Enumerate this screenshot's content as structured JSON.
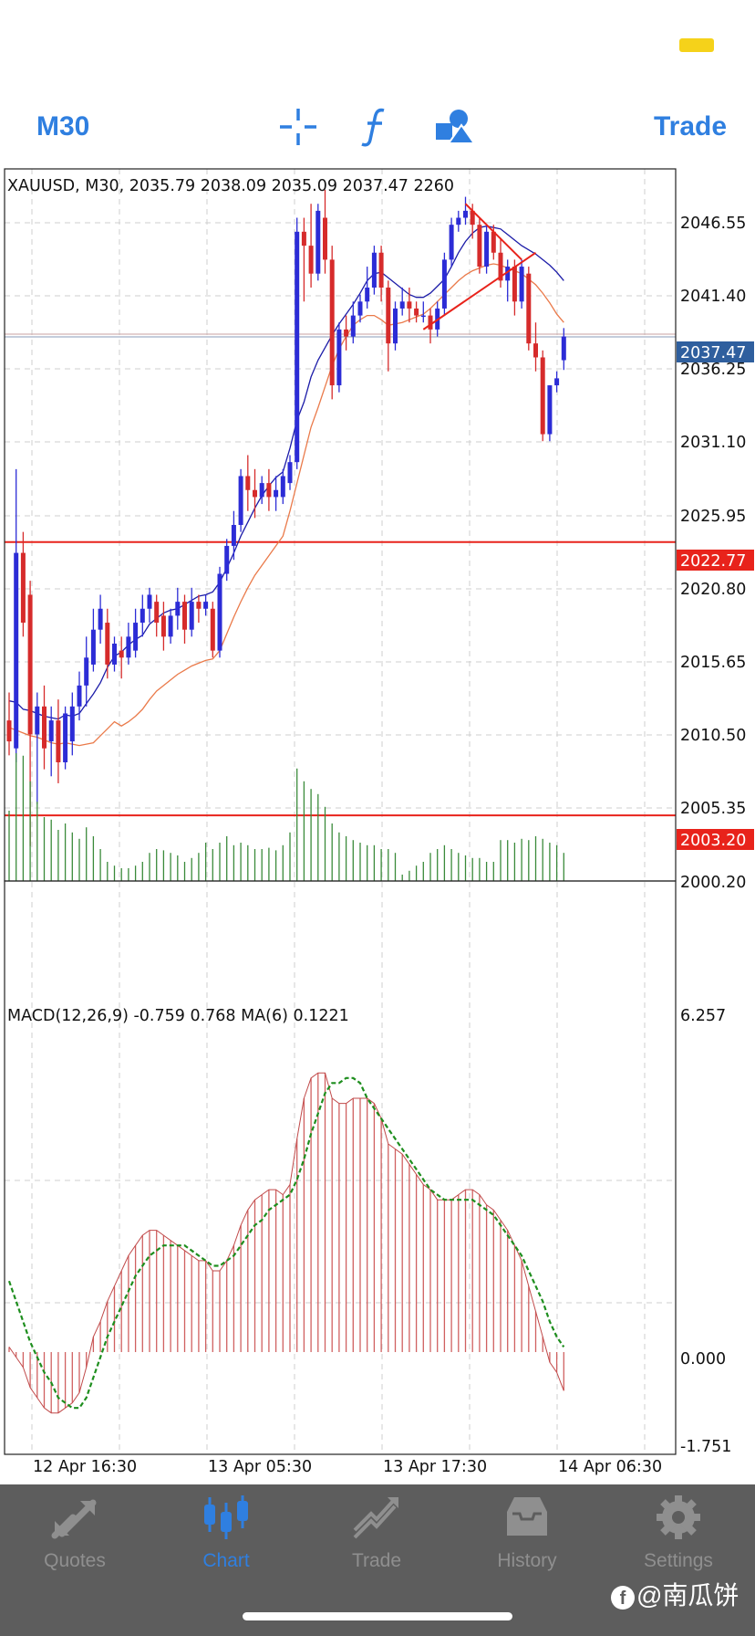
{
  "toolbar": {
    "timeframe": "M30",
    "trade_label": "Trade",
    "icons": [
      "crosshair-icon",
      "function-icon",
      "objects-icon"
    ]
  },
  "chart_header": {
    "symbol_line": "XAUUSD, M30, 2035.79 2038.09 2035.09 2037.47 2260",
    "macd_line": "MACD(12,26,9) -0.759 0.768 MA(6) 0.1221"
  },
  "price_axis": {
    "labels": [
      "2046.55",
      "2041.40",
      "2036.25",
      "2031.10",
      "2025.95",
      "2020.80",
      "2015.65",
      "2010.50",
      "2005.35",
      "2000.20"
    ],
    "current_price": "2037.47",
    "level_upper": "2022.77",
    "level_lower": "2003.20"
  },
  "macd_axis": {
    "labels": [
      "6.257",
      "0.000",
      "-1.751"
    ]
  },
  "time_axis": {
    "labels": [
      "12 Apr 16:30",
      "13 Apr 05:30",
      "13 Apr 17:30",
      "14 Apr 06:30"
    ]
  },
  "colors": {
    "bull": "#2c2cd6",
    "bear": "#d62b2b",
    "level": "#e8231b",
    "accent": "#2f7fe0",
    "price_tag": "#2f5f9e",
    "ma_fast": "#1c1ca8",
    "ma_slow": "#ea7a4a",
    "volume": "#3a8a3a",
    "macd_hist": "#d06060",
    "macd_signal": "#1e8e1e"
  },
  "chart_data": {
    "type": "candlestick",
    "symbol": "XAUUSD",
    "timeframe": "M30",
    "ylim": [
      1998.5,
      2049.5
    ],
    "candles": [
      {
        "o": 2010.0,
        "h": 2012.0,
        "c": 2008.5,
        "l": 2007.5
      },
      {
        "o": 2008.0,
        "h": 2028.0,
        "c": 2022.0,
        "l": 2007.0
      },
      {
        "o": 2022.0,
        "h": 2023.5,
        "c": 2017.0,
        "l": 2016.0
      },
      {
        "o": 2019.0,
        "h": 2020.0,
        "c": 2009.0,
        "l": 2001.0
      },
      {
        "o": 2009.0,
        "h": 2012.0,
        "c": 2011.0,
        "l": 2004.0
      },
      {
        "o": 2011.0,
        "h": 2012.5,
        "c": 2008.0,
        "l": 2006.5
      },
      {
        "o": 2008.5,
        "h": 2011.0,
        "c": 2010.0,
        "l": 2006.0
      },
      {
        "o": 2010.0,
        "h": 2011.5,
        "c": 2007.0,
        "l": 2005.5
      },
      {
        "o": 2007.0,
        "h": 2011.0,
        "c": 2010.5,
        "l": 2006.5
      },
      {
        "o": 2008.5,
        "h": 2012.0,
        "c": 2011.0,
        "l": 2007.5
      },
      {
        "o": 2011.0,
        "h": 2013.5,
        "c": 2012.5,
        "l": 2010.0
      },
      {
        "o": 2012.5,
        "h": 2016.0,
        "c": 2014.5,
        "l": 2011.0
      },
      {
        "o": 2014.0,
        "h": 2018.0,
        "c": 2016.5,
        "l": 2013.5
      },
      {
        "o": 2016.5,
        "h": 2019.0,
        "c": 2018.0,
        "l": 2015.5
      },
      {
        "o": 2017.0,
        "h": 2018.0,
        "c": 2014.0,
        "l": 2013.0
      },
      {
        "o": 2014.0,
        "h": 2016.0,
        "c": 2015.5,
        "l": 2013.5
      },
      {
        "o": 2015.0,
        "h": 2016.0,
        "c": 2014.5,
        "l": 2013.0
      },
      {
        "o": 2014.5,
        "h": 2017.0,
        "c": 2016.0,
        "l": 2014.0
      },
      {
        "o": 2015.0,
        "h": 2018.0,
        "c": 2017.0,
        "l": 2014.5
      },
      {
        "o": 2017.0,
        "h": 2019.0,
        "c": 2018.0,
        "l": 2016.0
      },
      {
        "o": 2018.0,
        "h": 2019.5,
        "c": 2019.0,
        "l": 2017.0
      },
      {
        "o": 2018.5,
        "h": 2019.0,
        "c": 2017.0,
        "l": 2016.0
      },
      {
        "o": 2017.5,
        "h": 2018.5,
        "c": 2016.0,
        "l": 2015.0
      },
      {
        "o": 2016.0,
        "h": 2018.0,
        "c": 2017.5,
        "l": 2015.5
      },
      {
        "o": 2017.5,
        "h": 2019.5,
        "c": 2018.5,
        "l": 2016.5
      },
      {
        "o": 2018.5,
        "h": 2019.0,
        "c": 2016.5,
        "l": 2015.5
      },
      {
        "o": 2016.5,
        "h": 2019.5,
        "c": 2018.5,
        "l": 2016.0
      },
      {
        "o": 2018.5,
        "h": 2019.0,
        "c": 2018.0,
        "l": 2017.0
      },
      {
        "o": 2018.0,
        "h": 2019.0,
        "c": 2018.5,
        "l": 2017.5
      },
      {
        "o": 2018.0,
        "h": 2018.5,
        "c": 2015.0,
        "l": 2014.5
      },
      {
        "o": 2015.0,
        "h": 2021.0,
        "c": 2020.5,
        "l": 2014.5
      },
      {
        "o": 2020.5,
        "h": 2023.0,
        "c": 2022.5,
        "l": 2020.0
      },
      {
        "o": 2022.5,
        "h": 2025.0,
        "c": 2024.0,
        "l": 2021.5
      },
      {
        "o": 2024.0,
        "h": 2028.0,
        "c": 2027.5,
        "l": 2023.5
      },
      {
        "o": 2027.5,
        "h": 2029.0,
        "c": 2026.5,
        "l": 2025.0
      },
      {
        "o": 2026.5,
        "h": 2028.0,
        "c": 2026.0,
        "l": 2024.5
      },
      {
        "o": 2026.0,
        "h": 2027.5,
        "c": 2027.0,
        "l": 2025.5
      },
      {
        "o": 2027.0,
        "h": 2028.0,
        "c": 2026.0,
        "l": 2025.0
      },
      {
        "o": 2026.0,
        "h": 2027.5,
        "c": 2026.5,
        "l": 2025.0
      },
      {
        "o": 2026.0,
        "h": 2028.0,
        "c": 2027.5,
        "l": 2025.5
      },
      {
        "o": 2027.0,
        "h": 2029.0,
        "c": 2028.5,
        "l": 2026.5
      },
      {
        "o": 2028.5,
        "h": 2046.0,
        "c": 2045.0,
        "l": 2028.0
      },
      {
        "o": 2045.0,
        "h": 2046.0,
        "c": 2044.0,
        "l": 2040.0
      },
      {
        "o": 2044.0,
        "h": 2047.0,
        "c": 2042.0,
        "l": 2041.0
      },
      {
        "o": 2042.0,
        "h": 2047.0,
        "c": 2046.5,
        "l": 2041.5
      },
      {
        "o": 2046.0,
        "h": 2048.0,
        "c": 2043.0,
        "l": 2042.0
      },
      {
        "o": 2043.0,
        "h": 2044.0,
        "c": 2034.0,
        "l": 2033.0
      },
      {
        "o": 2034.0,
        "h": 2038.5,
        "c": 2038.0,
        "l": 2033.5
      },
      {
        "o": 2038.0,
        "h": 2039.0,
        "c": 2037.5,
        "l": 2036.5
      },
      {
        "o": 2037.5,
        "h": 2040.0,
        "c": 2039.0,
        "l": 2037.0
      },
      {
        "o": 2039.0,
        "h": 2040.5,
        "c": 2040.0,
        "l": 2038.5
      },
      {
        "o": 2040.0,
        "h": 2042.5,
        "c": 2041.0,
        "l": 2039.5
      },
      {
        "o": 2041.0,
        "h": 2044.0,
        "c": 2043.5,
        "l": 2040.5
      },
      {
        "o": 2043.5,
        "h": 2044.0,
        "c": 2041.0,
        "l": 2040.0
      },
      {
        "o": 2041.0,
        "h": 2041.5,
        "c": 2037.0,
        "l": 2035.0
      },
      {
        "o": 2037.0,
        "h": 2040.0,
        "c": 2039.5,
        "l": 2036.5
      },
      {
        "o": 2039.5,
        "h": 2041.0,
        "c": 2040.0,
        "l": 2039.0
      },
      {
        "o": 2040.0,
        "h": 2041.0,
        "c": 2039.5,
        "l": 2038.5
      },
      {
        "o": 2039.5,
        "h": 2040.0,
        "c": 2039.0,
        "l": 2038.5
      },
      {
        "o": 2039.0,
        "h": 2040.0,
        "c": 2039.0,
        "l": 2038.5
      },
      {
        "o": 2039.0,
        "h": 2039.5,
        "c": 2038.0,
        "l": 2037.0
      },
      {
        "o": 2038.0,
        "h": 2040.0,
        "c": 2039.5,
        "l": 2037.5
      },
      {
        "o": 2039.5,
        "h": 2043.5,
        "c": 2043.0,
        "l": 2039.0
      },
      {
        "o": 2043.0,
        "h": 2046.0,
        "c": 2045.5,
        "l": 2042.5
      },
      {
        "o": 2045.5,
        "h": 2046.5,
        "c": 2046.0,
        "l": 2045.0
      },
      {
        "o": 2046.0,
        "h": 2047.5,
        "c": 2046.5,
        "l": 2045.5
      },
      {
        "o": 2046.5,
        "h": 2047.0,
        "c": 2045.5,
        "l": 2044.5
      },
      {
        "o": 2045.5,
        "h": 2046.0,
        "c": 2042.5,
        "l": 2042.0
      },
      {
        "o": 2042.5,
        "h": 2045.5,
        "c": 2045.0,
        "l": 2042.0
      },
      {
        "o": 2045.0,
        "h": 2045.5,
        "c": 2043.5,
        "l": 2043.0
      },
      {
        "o": 2043.5,
        "h": 2044.5,
        "c": 2041.5,
        "l": 2041.0
      },
      {
        "o": 2041.5,
        "h": 2043.0,
        "c": 2042.5,
        "l": 2040.0
      },
      {
        "o": 2042.5,
        "h": 2043.0,
        "c": 2040.0,
        "l": 2039.0
      },
      {
        "o": 2040.0,
        "h": 2043.0,
        "c": 2042.5,
        "l": 2039.5
      },
      {
        "o": 2042.0,
        "h": 2042.5,
        "c": 2037.0,
        "l": 2036.5
      },
      {
        "o": 2037.0,
        "h": 2038.5,
        "c": 2036.0,
        "l": 2035.0
      },
      {
        "o": 2036.0,
        "h": 2036.5,
        "c": 2030.5,
        "l": 2030.0
      },
      {
        "o": 2030.5,
        "h": 2034.0,
        "c": 2034.0,
        "l": 2030.0
      },
      {
        "o": 2034.0,
        "h": 2035.0,
        "c": 2034.5,
        "l": 2033.5
      },
      {
        "o": 2035.8,
        "h": 2038.1,
        "c": 2037.5,
        "l": 2035.1
      }
    ],
    "ma_fast": [
      2011.4,
      2011.3,
      2010.8,
      2010.7,
      2010.5,
      2010.3,
      2010.2,
      2010.1,
      2010.4,
      2010.3,
      2010.5,
      2011.2,
      2011.9,
      2012.7,
      2013.8,
      2014.6,
      2014.9,
      2015.4,
      2015.8,
      2016.1,
      2016.9,
      2017.3,
      2017.7,
      2017.9,
      2018.0,
      2018.3,
      2018.6,
      2018.9,
      2019.0,
      2019.2,
      2019.9,
      2020.9,
      2022.0,
      2023.2,
      2024.2,
      2025.2,
      2026.1,
      2026.8,
      2027.4,
      2027.8,
      2029.5,
      2031.5,
      2032.8,
      2034.6,
      2035.8,
      2036.7,
      2037.6,
      2038.4,
      2039.1,
      2039.8,
      2040.6,
      2041.5,
      2042.0,
      2042.1,
      2041.7,
      2041.3,
      2040.9,
      2040.5,
      2040.3,
      2040.3,
      2040.6,
      2041.1,
      2041.6,
      2042.5,
      2043.5,
      2044.3,
      2044.9,
      2045.3,
      2045.4,
      2045.3,
      2045.2,
      2044.8,
      2044.4,
      2044.0,
      2043.7,
      2043.4,
      2043.0,
      2042.6,
      2042.1,
      2041.5
    ],
    "ma_slow": [
      2009.5,
      2009.3,
      2009.1,
      2008.9,
      2008.8,
      2008.6,
      2008.4,
      2008.3,
      2008.4,
      2008.3,
      2008.2,
      2008.3,
      2008.4,
      2008.9,
      2009.4,
      2009.9,
      2009.6,
      2009.9,
      2010.3,
      2010.8,
      2011.5,
      2012.1,
      2012.5,
      2012.9,
      2013.3,
      2013.6,
      2013.9,
      2014.1,
      2014.3,
      2014.4,
      2015.0,
      2016.2,
      2017.4,
      2018.5,
      2019.5,
      2020.4,
      2021.1,
      2021.8,
      2022.5,
      2023.2,
      2025.0,
      2027.0,
      2029.0,
      2031.0,
      2032.4,
      2033.9,
      2035.4,
      2036.6,
      2037.5,
      2038.3,
      2038.7,
      2039.0,
      2039.0,
      2038.7,
      2038.3,
      2038.4,
      2038.5,
      2038.7,
      2038.9,
      2039.1,
      2039.5,
      2040.0,
      2040.5,
      2041.0,
      2041.5,
      2041.9,
      2042.2,
      2042.4,
      2042.6,
      2042.7,
      2042.6,
      2042.4,
      2042.2,
      2042.0,
      2041.6,
      2041.2,
      2040.6,
      2039.9,
      2039.1,
      2038.5
    ],
    "trendlines": [
      {
        "from": [
          65,
          2047.0
        ],
        "to": [
          73,
          2043.0
        ]
      },
      {
        "from": [
          59,
          2038.0
        ],
        "to": [
          75,
          2043.5
        ]
      }
    ],
    "levels": [
      2022.77,
      2003.2
    ],
    "current_price": 2037.47,
    "volume": [
      0.55,
      1.0,
      0.98,
      0.78,
      0.62,
      0.5,
      0.48,
      0.4,
      0.45,
      0.38,
      0.33,
      0.42,
      0.35,
      0.25,
      0.15,
      0.12,
      0.1,
      0.1,
      0.12,
      0.15,
      0.22,
      0.25,
      0.24,
      0.22,
      0.2,
      0.15,
      0.18,
      0.22,
      0.3,
      0.25,
      0.3,
      0.35,
      0.28,
      0.3,
      0.28,
      0.25,
      0.25,
      0.26,
      0.24,
      0.28,
      0.38,
      0.88,
      0.78,
      0.72,
      0.68,
      0.58,
      0.45,
      0.38,
      0.35,
      0.32,
      0.3,
      0.28,
      0.28,
      0.25,
      0.25,
      0.22,
      0.05,
      0.08,
      0.12,
      0.15,
      0.22,
      0.25,
      0.28,
      0.25,
      0.22,
      0.2,
      0.18,
      0.18,
      0.15,
      0.15,
      0.32,
      0.32,
      0.3,
      0.33,
      0.32,
      0.35,
      0.33,
      0.3,
      0.28,
      0.22
    ],
    "macd": {
      "ylim": [
        -1.751,
        6.257
      ],
      "histogram": [
        0.1,
        -0.1,
        -0.3,
        -0.7,
        -0.9,
        -1.1,
        -1.2,
        -1.2,
        -1.1,
        -1.0,
        -0.8,
        -0.3,
        0.3,
        0.6,
        1.0,
        1.3,
        1.6,
        1.9,
        2.1,
        2.3,
        2.4,
        2.4,
        2.3,
        2.2,
        2.1,
        2.0,
        1.9,
        1.8,
        1.8,
        1.6,
        1.6,
        1.8,
        2.1,
        2.5,
        2.8,
        3.0,
        3.1,
        3.2,
        3.2,
        3.1,
        3.3,
        4.2,
        5.0,
        5.4,
        5.5,
        5.5,
        5.0,
        4.9,
        4.9,
        5.0,
        5.0,
        5.0,
        4.9,
        4.6,
        4.1,
        4.0,
        3.9,
        3.7,
        3.5,
        3.3,
        3.2,
        3.0,
        3.0,
        3.0,
        3.1,
        3.2,
        3.2,
        3.1,
        2.9,
        2.8,
        2.6,
        2.4,
        2.1,
        1.8,
        1.3,
        0.8,
        0.3,
        -0.2,
        -0.4,
        -0.76
      ],
      "signal": [
        1.4,
        1.0,
        0.6,
        0.2,
        -0.1,
        -0.4,
        -0.6,
        -0.9,
        -1.0,
        -1.1,
        -1.1,
        -0.9,
        -0.5,
        -0.1,
        0.3,
        0.6,
        0.9,
        1.2,
        1.5,
        1.7,
        1.9,
        2.0,
        2.1,
        2.1,
        2.1,
        2.1,
        2.0,
        1.9,
        1.8,
        1.7,
        1.7,
        1.8,
        1.9,
        2.1,
        2.3,
        2.5,
        2.6,
        2.8,
        2.9,
        3.0,
        3.1,
        3.4,
        3.8,
        4.3,
        4.7,
        5.1,
        5.3,
        5.3,
        5.4,
        5.4,
        5.3,
        5.0,
        4.8,
        4.6,
        4.4,
        4.2,
        4.0,
        3.8,
        3.6,
        3.4,
        3.2,
        3.1,
        3.0,
        3.0,
        3.0,
        3.0,
        3.0,
        2.9,
        2.8,
        2.7,
        2.5,
        2.3,
        2.1,
        1.9,
        1.6,
        1.3,
        1.0,
        0.6,
        0.3,
        0.1
      ]
    }
  },
  "tabs": [
    {
      "label": "Quotes",
      "icon": "quotes-icon"
    },
    {
      "label": "Chart",
      "icon": "chart-icon"
    },
    {
      "label": "Trade",
      "icon": "trade-icon"
    },
    {
      "label": "History",
      "icon": "history-icon"
    },
    {
      "label": "Settings",
      "icon": "settings-icon"
    }
  ],
  "watermark": "@南瓜饼"
}
